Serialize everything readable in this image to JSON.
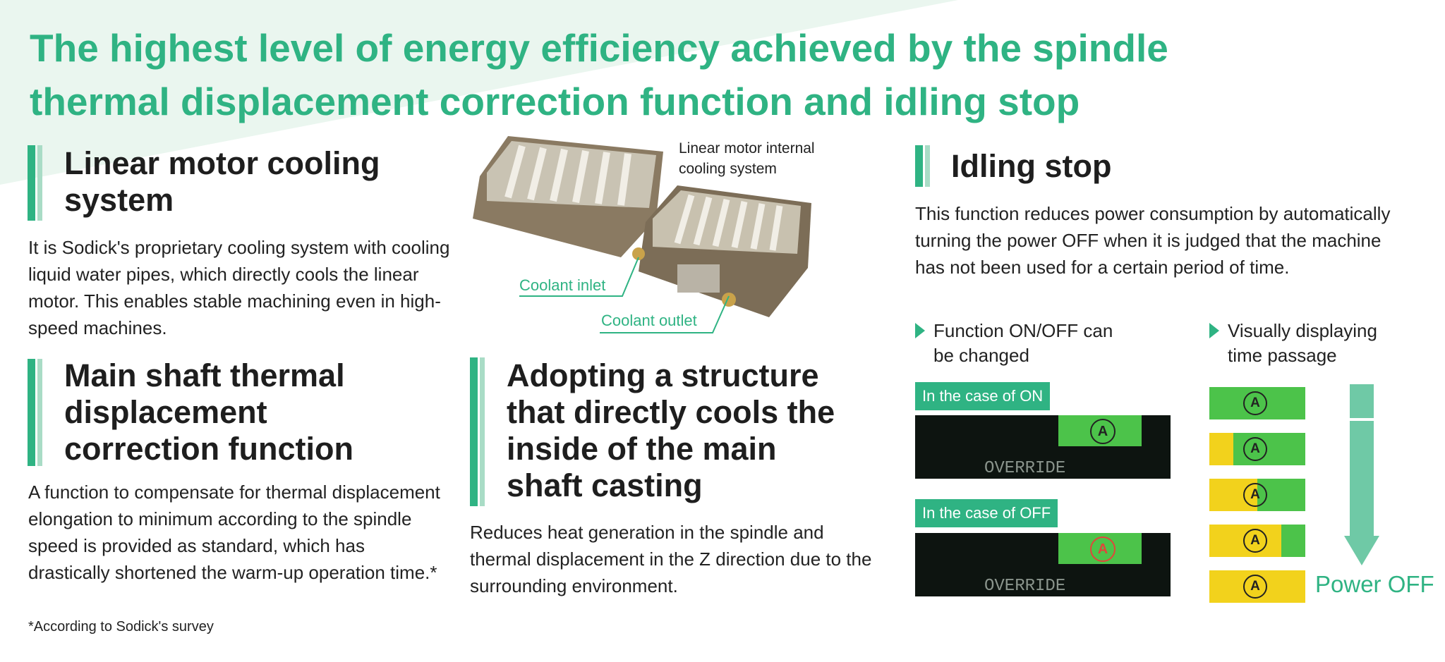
{
  "header": {
    "title_lines": [
      "The highest level of energy efficiency achieved by the spindle",
      "thermal displacement correction function and idling stop"
    ]
  },
  "linear_motor": {
    "heading_lines": [
      "Linear motor cooling",
      "system"
    ],
    "body": "It is Sodick's proprietary cooling system with cooling liquid water pipes, which directly cools the linear motor. This enables stable machining even in high-speed machines."
  },
  "photo": {
    "caption_lines": [
      "Linear motor internal",
      "cooling system"
    ],
    "inlet": "Coolant inlet",
    "outlet": "Coolant outlet"
  },
  "main_shaft": {
    "heading_lines": [
      "Main shaft thermal",
      "displacement",
      "correction function"
    ],
    "body": "A function to compensate for thermal displacement elongation to minimum according to the spindle speed is provided as standard, which has drastically shortened the warm-up operation time.*",
    "footnote": "*According to Sodick's survey"
  },
  "structure": {
    "heading_lines": [
      "Adopting a structure",
      "that directly cools the",
      "inside of the main",
      "shaft casting"
    ],
    "body": "Reduces heat generation in the spindle and thermal displacement in the Z direction due to the surrounding environment."
  },
  "idling": {
    "heading": "Idling stop",
    "body": "This function reduces power consumption by automatically turning the power OFF when it is judged that the machine has not been used for a certain period of time.",
    "bullets": [
      [
        "Function ON/OFF can",
        "be changed"
      ],
      [
        "Visually displaying",
        "time passage"
      ]
    ],
    "on_label": "In the case of ON",
    "off_label": "In the case of OFF",
    "screen_text": "OVERRIDE",
    "icon": "A",
    "power_off": "Power OFF"
  }
}
